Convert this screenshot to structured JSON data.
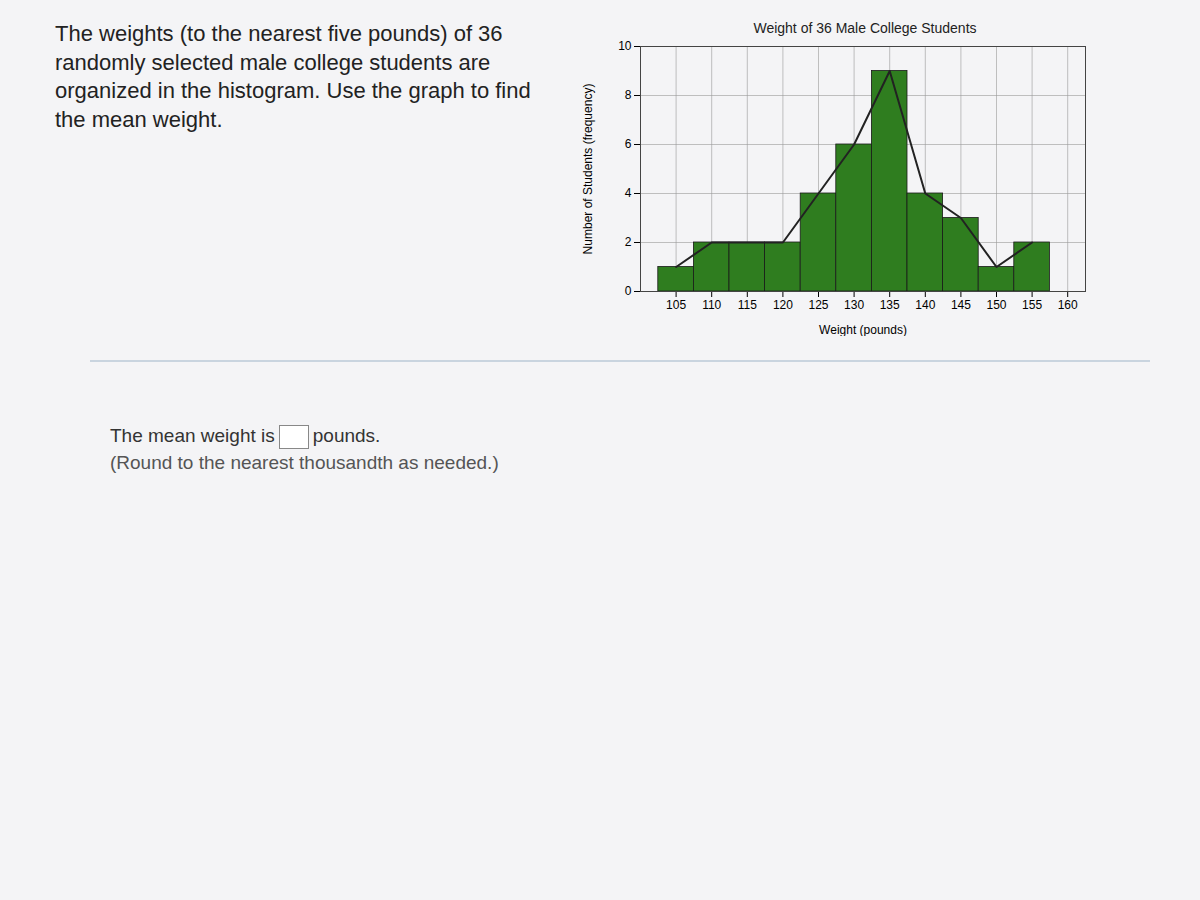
{
  "question": "The weights (to the nearest five pounds) of 36 randomly selected male college students are organized in the histogram. Use the graph to find the mean weight.",
  "answer_prefix": "The mean weight is",
  "answer_suffix": "pounds.",
  "note": "(Round to the nearest thousandth as needed.)",
  "chart_data": {
    "type": "histogram",
    "title": "Weight of 36 Male College Students",
    "x_label": "Weight (pounds)",
    "y_label": "Number of Students (frequency)",
    "bins": [
      102.5,
      107.5,
      112.5,
      117.5,
      122.5,
      127.5,
      132.5,
      137.5,
      142.5,
      147.5,
      152.5,
      157.5
    ],
    "values": [
      1,
      2,
      2,
      2,
      4,
      6,
      9,
      4,
      3,
      1,
      2
    ],
    "color": "#2f7d1f",
    "xlim": [
      100,
      162.5
    ],
    "xticks": [
      105,
      110,
      115,
      120,
      125,
      130,
      135,
      140,
      145,
      150,
      155,
      160
    ],
    "ylim": [
      0,
      10
    ],
    "yticks": [
      0,
      2,
      4,
      6,
      8,
      10
    ],
    "grid": true
  }
}
